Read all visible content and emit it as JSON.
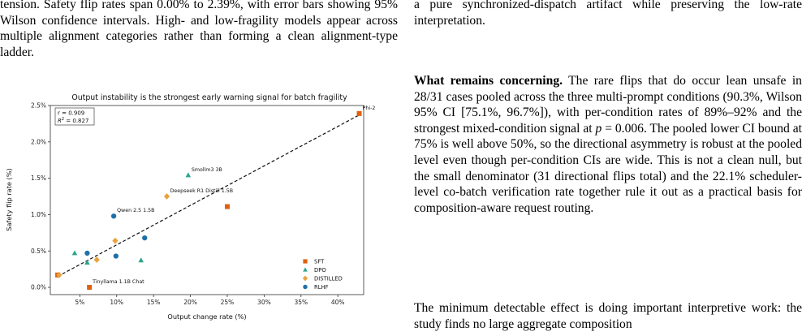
{
  "left_text": "tension. Safety flip rates span 0.00% to 2.39%, with error bars showing 95% Wilson confidence intervals. High- and low-fragility models appear across multiple alignment categories rather than forming a clean alignment-type ladder.",
  "right_top": "a pure synchronized-dispatch artifact while preserving the low-rate interpretation.",
  "section": {
    "heading": "What remains concerning.",
    "text_before_p": "The rare flips that do occur lean unsafe in 28/31 cases pooled across the three multi-prompt conditions (90.3%, Wilson 95% CI [75.1%, 96.7%]), with per-condition rates of 89%–92% and the strongest mixed-condition signal at",
    "p_symbol": "p",
    "p_value": "= 0.006",
    "text_after_p": ". The pooled lower CI bound at 75% is well above 50%, so the directional asymmetry is robust at the pooled level even though per-condition CIs are wide. This is not a clean null, but the small denominator (31 directional flips total) and the 22.1% scheduler-level co-batch verification rate together rule it out as a practical basis for composition-aware request routing."
  },
  "right_bottom": "The minimum detectable effect is doing important interpretive work: the study finds no large aggregate composition",
  "chart_data": {
    "type": "scatter",
    "title": "Output instability is the strongest early warning signal for batch fragility",
    "xlabel": "Output change rate (%)",
    "ylabel": "Safety flip rate (%)",
    "xlim": [
      1.0,
      43.5
    ],
    "ylim": [
      -0.1,
      2.5
    ],
    "xticks": [
      "5%",
      "10%",
      "15%",
      "20%",
      "25%",
      "30%",
      "35%",
      "40%"
    ],
    "xtick_values": [
      5,
      10,
      15,
      20,
      25,
      30,
      35,
      40
    ],
    "yticks": [
      "0.0%",
      "0.5%",
      "1.0%",
      "1.5%",
      "2.0%",
      "2.5%"
    ],
    "ytick_values": [
      0.0,
      0.5,
      1.0,
      1.5,
      2.0,
      2.5
    ],
    "stats": {
      "r": "r = 0.909",
      "r2": "R² = 0.827"
    },
    "fit_line": {
      "x": [
        2.0,
        42.9
      ],
      "y": [
        0.15,
        2.37
      ]
    },
    "grid": false,
    "legend_position": "bottom-right",
    "series": [
      {
        "name": "SFT",
        "marker": "square",
        "color": "#e06010",
        "points": [
          {
            "x": 2.0,
            "y": 0.17
          },
          {
            "x": 6.3,
            "y": 0.0,
            "label": "Tinyllama 1.1B Chat"
          },
          {
            "x": 25.0,
            "y": 1.11
          },
          {
            "x": 42.9,
            "y": 2.39,
            "label": "Phi-2"
          }
        ]
      },
      {
        "name": "DPO",
        "marker": "triangle",
        "color": "#2ca58d",
        "points": [
          {
            "x": 4.3,
            "y": 0.47
          },
          {
            "x": 6.0,
            "y": 0.34
          },
          {
            "x": 13.3,
            "y": 0.37
          },
          {
            "x": 19.7,
            "y": 1.54,
            "label": "Smollm3 3B"
          }
        ]
      },
      {
        "name": "DISTILLED",
        "marker": "diamond",
        "color": "#e8a23c",
        "points": [
          {
            "x": 2.2,
            "y": 0.17
          },
          {
            "x": 7.3,
            "y": 0.38
          },
          {
            "x": 9.8,
            "y": 0.64
          },
          {
            "x": 16.8,
            "y": 1.25,
            "label": "Deepseek R1 Distill 1.5B"
          }
        ]
      },
      {
        "name": "RLHF",
        "marker": "circle",
        "color": "#1f6fa8",
        "points": [
          {
            "x": 6.0,
            "y": 0.47
          },
          {
            "x": 9.9,
            "y": 0.43
          },
          {
            "x": 13.8,
            "y": 0.68
          },
          {
            "x": 9.6,
            "y": 0.98,
            "label": "Qwen 2.5 1.5B"
          }
        ]
      }
    ]
  }
}
